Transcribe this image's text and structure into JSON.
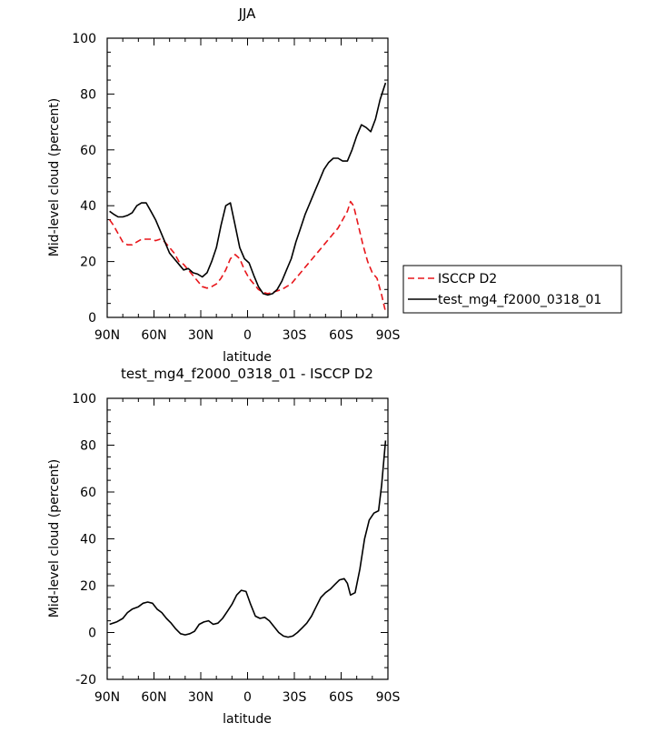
{
  "colors": {
    "model": "#000000",
    "obs": "#e8161b",
    "axis": "#000000"
  },
  "chart_data": [
    {
      "type": "line",
      "title": "JJA",
      "xlabel": "latitude",
      "ylabel": "Mid-level cloud (percent)",
      "xlim": [
        90,
        -90
      ],
      "ylim": [
        0,
        100
      ],
      "x_ticks": [
        90,
        60,
        30,
        0,
        -30,
        -60,
        -90
      ],
      "x_tick_labels": [
        "90N",
        "60N",
        "30N",
        "0",
        "30S",
        "60S",
        "90S"
      ],
      "y_ticks": [
        0,
        20,
        40,
        60,
        80,
        100
      ],
      "y_tick_labels": [
        "0",
        "20",
        "40",
        "60",
        "80",
        "100"
      ],
      "legend": {
        "position": "right",
        "entries": [
          "ISCCP D2",
          "test_mg4_f2000_0318_01"
        ]
      },
      "series": [
        {
          "name": "ISCCP D2",
          "style": "dashed",
          "color": "#e8161b",
          "x": [
            88.5,
            86,
            83,
            80,
            77,
            74,
            71,
            68,
            65,
            62,
            59,
            56,
            53,
            50,
            47,
            44,
            41,
            38,
            35,
            32,
            29,
            26,
            23,
            20,
            17,
            14,
            11,
            8,
            5,
            2,
            -1,
            -4,
            -7,
            -10,
            -13,
            -16,
            -19,
            -22,
            -25,
            -28,
            -31,
            -34,
            -37,
            -40,
            -43,
            -46,
            -49,
            -52,
            -55,
            -58,
            -61,
            -64,
            -66,
            -68,
            -71,
            -74,
            -77,
            -80,
            -83,
            -86,
            -88.5
          ],
          "y": [
            35,
            33,
            30,
            27,
            26,
            26,
            27,
            28,
            28,
            28,
            27.5,
            28,
            27,
            25,
            23,
            20,
            19,
            17,
            15,
            13,
            11,
            10.5,
            11,
            12,
            14,
            17,
            21,
            22.5,
            21,
            17,
            14,
            12,
            10,
            9,
            8.5,
            9,
            9.5,
            10,
            11,
            12,
            14,
            16,
            18,
            20,
            22,
            24,
            26,
            28,
            30,
            32,
            35,
            38,
            41.5,
            40,
            33,
            26,
            20,
            16,
            14,
            8,
            2
          ]
        },
        {
          "name": "test_mg4_f2000_0318_01",
          "style": "solid",
          "color": "#000000",
          "x": [
            88.5,
            86,
            83,
            80,
            77,
            74,
            71,
            68,
            65,
            62,
            59,
            56,
            53,
            50,
            47,
            44,
            41,
            38,
            35,
            32,
            29,
            26,
            23,
            20,
            17,
            14,
            11,
            8,
            5,
            2,
            -1,
            -4,
            -7,
            -10,
            -13,
            -16,
            -19,
            -22,
            -25,
            -28,
            -31,
            -34,
            -37,
            -40,
            -43,
            -46,
            -49,
            -52,
            -55,
            -58,
            -61,
            -64,
            -67,
            -70,
            -73,
            -76,
            -79,
            -82,
            -85,
            -88.5
          ],
          "y": [
            38,
            37,
            36,
            36,
            36.5,
            37.5,
            40,
            41,
            41,
            38,
            35,
            31,
            27,
            23,
            21,
            19,
            17,
            17.5,
            16,
            15.5,
            14.5,
            16,
            20,
            25,
            33,
            40,
            41,
            33,
            25,
            21,
            19.5,
            15,
            11,
            8.5,
            8,
            8.5,
            10,
            13,
            17,
            21,
            27,
            32,
            37,
            41,
            45,
            49,
            53,
            55.5,
            57,
            57,
            56,
            56,
            60,
            65,
            69,
            68,
            66.5,
            71,
            78,
            84
          ]
        }
      ]
    },
    {
      "type": "line",
      "title": "test_mg4_f2000_0318_01 - ISCCP D2",
      "xlabel": "latitude",
      "ylabel": "Mid-level cloud (percent)",
      "xlim": [
        90,
        -90
      ],
      "ylim": [
        -20,
        100
      ],
      "x_ticks": [
        90,
        60,
        30,
        0,
        -30,
        -60,
        -90
      ],
      "x_tick_labels": [
        "90N",
        "60N",
        "30N",
        "0",
        "30S",
        "60S",
        "90S"
      ],
      "y_ticks": [
        -20,
        0,
        20,
        40,
        60,
        80,
        100
      ],
      "y_tick_labels": [
        "-20",
        "0",
        "20",
        "40",
        "60",
        "80",
        "100"
      ],
      "series": [
        {
          "name": "test_mg4_f2000_0318_01 - ISCCP D2",
          "style": "solid",
          "color": "#000000",
          "x": [
            88.5,
            84,
            80,
            77,
            74,
            70,
            67,
            64,
            61,
            58,
            55,
            52,
            49,
            46,
            43,
            40,
            37,
            34,
            31,
            28,
            25,
            22,
            19,
            16,
            13,
            10,
            7,
            4,
            1,
            -2,
            -5,
            -8,
            -11,
            -14,
            -17,
            -20,
            -23,
            -26,
            -29,
            -32,
            -35,
            -38,
            -41,
            -44,
            -47,
            -50,
            -53,
            -56,
            -59,
            -62,
            -64,
            -66,
            -69,
            -72,
            -75,
            -78,
            -81,
            -84,
            -86,
            -88.5
          ],
          "y": [
            3.5,
            4.5,
            6,
            8.5,
            10,
            11,
            12.5,
            13,
            12.5,
            10,
            8.5,
            6,
            4,
            1.5,
            -0.5,
            -1,
            -0.5,
            0.5,
            3.5,
            4.5,
            5,
            3.5,
            4,
            6,
            9,
            12,
            16,
            18,
            17.5,
            12,
            7,
            6,
            6.5,
            5,
            2.5,
            0,
            -1.5,
            -2,
            -1.5,
            0,
            2,
            4,
            7,
            11,
            15,
            17,
            18.5,
            20.5,
            22.5,
            23,
            21,
            16,
            17,
            27,
            40,
            48,
            51,
            52,
            63,
            82
          ]
        }
      ]
    }
  ]
}
